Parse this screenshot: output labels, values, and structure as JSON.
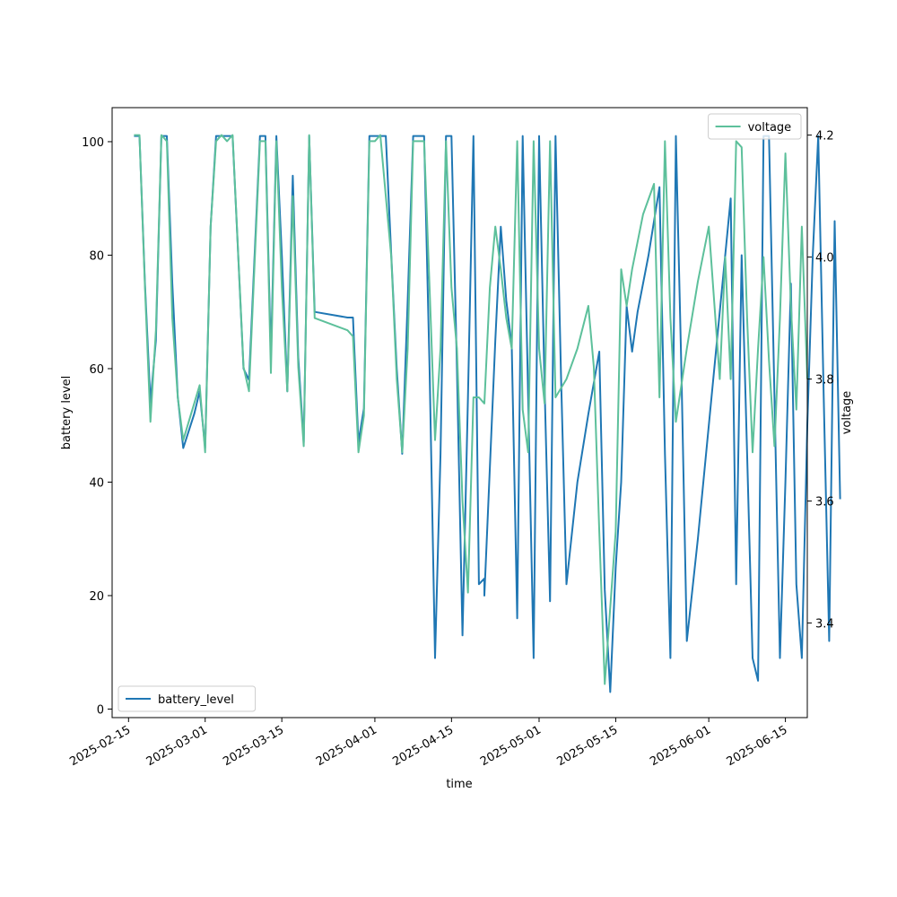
{
  "chart_data": {
    "type": "line",
    "xlabel": "time",
    "ylabel": "battery level",
    "y2label": "voltage",
    "xlim": [
      "2025-02-12",
      "2025-06-19"
    ],
    "ylim": [
      -1.5,
      106
    ],
    "y2lim": [
      3.245,
      4.245
    ],
    "x_ticks": [
      "2025-02-15",
      "2025-03-01",
      "2025-03-15",
      "2025-04-01",
      "2025-04-15",
      "2025-05-01",
      "2025-05-15",
      "2025-06-01",
      "2025-06-15"
    ],
    "y_ticks": [
      0,
      20,
      40,
      60,
      80,
      100
    ],
    "y2_ticks": [
      "3.4",
      "3.6",
      "3.8",
      "4.0",
      "4.2"
    ],
    "grid": false,
    "series": [
      {
        "name": "battery_level",
        "axis": "left",
        "color": "#1f77b4",
        "legend_position": "lower-left",
        "points": [
          [
            "2025-02-16",
            101
          ],
          [
            "2025-02-17",
            101
          ],
          [
            "2025-02-18",
            75
          ],
          [
            "2025-02-19",
            54
          ],
          [
            "2025-02-20",
            65
          ],
          [
            "2025-02-21",
            101
          ],
          [
            "2025-02-22",
            101
          ],
          [
            "2025-02-23",
            75
          ],
          [
            "2025-02-24",
            55
          ],
          [
            "2025-02-25",
            46
          ],
          [
            "2025-02-26",
            49
          ],
          [
            "2025-02-27",
            52
          ],
          [
            "2025-02-28",
            56
          ],
          [
            "2025-03-01",
            46
          ],
          [
            "2025-03-02",
            85
          ],
          [
            "2025-03-03",
            101
          ],
          [
            "2025-03-04",
            101
          ],
          [
            "2025-03-06",
            101
          ],
          [
            "2025-03-08",
            60
          ],
          [
            "2025-03-09",
            58
          ],
          [
            "2025-03-11",
            101
          ],
          [
            "2025-03-12",
            101
          ],
          [
            "2025-03-13",
            62
          ],
          [
            "2025-03-14",
            101
          ],
          [
            "2025-03-15",
            80
          ],
          [
            "2025-03-16",
            56
          ],
          [
            "2025-03-17",
            94
          ],
          [
            "2025-03-18",
            62
          ],
          [
            "2025-03-19",
            47
          ],
          [
            "2025-03-20",
            101
          ],
          [
            "2025-03-21",
            70
          ],
          [
            "2025-03-27",
            69
          ],
          [
            "2025-03-28",
            69
          ],
          [
            "2025-03-29",
            47
          ],
          [
            "2025-03-30",
            53
          ],
          [
            "2025-03-31",
            101
          ],
          [
            "2025-04-01",
            101
          ],
          [
            "2025-04-03",
            101
          ],
          [
            "2025-04-04",
            80
          ],
          [
            "2025-04-05",
            60
          ],
          [
            "2025-04-06",
            45
          ],
          [
            "2025-04-07",
            72
          ],
          [
            "2025-04-08",
            101
          ],
          [
            "2025-04-10",
            101
          ],
          [
            "2025-04-11",
            60
          ],
          [
            "2025-04-12",
            9
          ],
          [
            "2025-04-13",
            45
          ],
          [
            "2025-04-14",
            101
          ],
          [
            "2025-04-15",
            101
          ],
          [
            "2025-04-16",
            60
          ],
          [
            "2025-04-17",
            13
          ],
          [
            "2025-04-18",
            55
          ],
          [
            "2025-04-19",
            101
          ],
          [
            "2025-04-20",
            22
          ],
          [
            "2025-04-21",
            23
          ],
          [
            "2025-04-21",
            20
          ],
          [
            "2025-04-23",
            65
          ],
          [
            "2025-04-24",
            85
          ],
          [
            "2025-04-25",
            72
          ],
          [
            "2025-04-26",
            64
          ],
          [
            "2025-04-27",
            16
          ],
          [
            "2025-04-28",
            101
          ],
          [
            "2025-04-29",
            55
          ],
          [
            "2025-04-30",
            9
          ],
          [
            "2025-05-01",
            101
          ],
          [
            "2025-05-02",
            57
          ],
          [
            "2025-05-03",
            19
          ],
          [
            "2025-05-04",
            101
          ],
          [
            "2025-05-05",
            59
          ],
          [
            "2025-05-06",
            22
          ],
          [
            "2025-05-08",
            40
          ],
          [
            "2025-05-10",
            52
          ],
          [
            "2025-05-12",
            63
          ],
          [
            "2025-05-13",
            21
          ],
          [
            "2025-05-14",
            3
          ],
          [
            "2025-05-15",
            25
          ],
          [
            "2025-05-16",
            40
          ],
          [
            "2025-05-17",
            71
          ],
          [
            "2025-05-18",
            63
          ],
          [
            "2025-05-19",
            70
          ],
          [
            "2025-05-21",
            80
          ],
          [
            "2025-05-23",
            92
          ],
          [
            "2025-05-24",
            45
          ],
          [
            "2025-05-25",
            9
          ],
          [
            "2025-05-26",
            101
          ],
          [
            "2025-05-27",
            60
          ],
          [
            "2025-05-28",
            12
          ],
          [
            "2025-05-30",
            30
          ],
          [
            "2025-06-01",
            50
          ],
          [
            "2025-06-03",
            70
          ],
          [
            "2025-06-05",
            90
          ],
          [
            "2025-06-06",
            22
          ],
          [
            "2025-06-07",
            80
          ],
          [
            "2025-06-08",
            45
          ],
          [
            "2025-06-09",
            9
          ],
          [
            "2025-06-10",
            5
          ],
          [
            "2025-06-11",
            101
          ],
          [
            "2025-06-12",
            101
          ],
          [
            "2025-06-13",
            55
          ],
          [
            "2025-06-14",
            9
          ],
          [
            "2025-06-15",
            40
          ],
          [
            "2025-06-16",
            75
          ],
          [
            "2025-06-17",
            22
          ],
          [
            "2025-06-18",
            9
          ],
          [
            "2025-06-19",
            50
          ],
          [
            "2025-06-20",
            80
          ],
          [
            "2025-06-21",
            101
          ],
          [
            "2025-06-22",
            55
          ],
          [
            "2025-06-23",
            12
          ],
          [
            "2025-06-24",
            86
          ],
          [
            "2025-06-25",
            37
          ]
        ]
      },
      {
        "name": "voltage",
        "axis": "right",
        "color": "#5dc09b",
        "legend_position": "upper-right",
        "points": [
          [
            "2025-02-16",
            4.2
          ],
          [
            "2025-02-17",
            4.2
          ],
          [
            "2025-02-18",
            3.95
          ],
          [
            "2025-02-19",
            3.73
          ],
          [
            "2025-02-20",
            3.88
          ],
          [
            "2025-02-21",
            4.2
          ],
          [
            "2025-02-22",
            4.19
          ],
          [
            "2025-02-23",
            3.9
          ],
          [
            "2025-02-24",
            3.77
          ],
          [
            "2025-02-25",
            3.7
          ],
          [
            "2025-02-26",
            3.73
          ],
          [
            "2025-02-27",
            3.76
          ],
          [
            "2025-02-28",
            3.79
          ],
          [
            "2025-03-01",
            3.68
          ],
          [
            "2025-03-02",
            4.05
          ],
          [
            "2025-03-03",
            4.19
          ],
          [
            "2025-03-04",
            4.2
          ],
          [
            "2025-03-05",
            4.19
          ],
          [
            "2025-03-06",
            4.2
          ],
          [
            "2025-03-08",
            3.82
          ],
          [
            "2025-03-09",
            3.78
          ],
          [
            "2025-03-11",
            4.19
          ],
          [
            "2025-03-12",
            4.19
          ],
          [
            "2025-03-13",
            3.81
          ],
          [
            "2025-03-14",
            4.19
          ],
          [
            "2025-03-15",
            3.95
          ],
          [
            "2025-03-16",
            3.78
          ],
          [
            "2025-03-17",
            4.1
          ],
          [
            "2025-03-18",
            3.82
          ],
          [
            "2025-03-19",
            3.69
          ],
          [
            "2025-03-20",
            4.2
          ],
          [
            "2025-03-21",
            3.9
          ],
          [
            "2025-03-27",
            3.88
          ],
          [
            "2025-03-28",
            3.87
          ],
          [
            "2025-03-29",
            3.68
          ],
          [
            "2025-03-30",
            3.74
          ],
          [
            "2025-03-31",
            4.19
          ],
          [
            "2025-04-01",
            4.19
          ],
          [
            "2025-04-02",
            4.2
          ],
          [
            "2025-04-04",
            4.0
          ],
          [
            "2025-04-05",
            3.8
          ],
          [
            "2025-04-06",
            3.68
          ],
          [
            "2025-04-07",
            3.85
          ],
          [
            "2025-04-08",
            4.19
          ],
          [
            "2025-04-09",
            4.19
          ],
          [
            "2025-04-10",
            4.19
          ],
          [
            "2025-04-11",
            3.95
          ],
          [
            "2025-04-12",
            3.7
          ],
          [
            "2025-04-13",
            3.85
          ],
          [
            "2025-04-14",
            4.19
          ],
          [
            "2025-04-15",
            3.95
          ],
          [
            "2025-04-16",
            3.85
          ],
          [
            "2025-04-17",
            3.6
          ],
          [
            "2025-04-18",
            3.45
          ],
          [
            "2025-04-19",
            3.77
          ],
          [
            "2025-04-20",
            3.77
          ],
          [
            "2025-04-21",
            3.76
          ],
          [
            "2025-04-22",
            3.95
          ],
          [
            "2025-04-23",
            4.05
          ],
          [
            "2025-04-24",
            3.98
          ],
          [
            "2025-04-25",
            3.9
          ],
          [
            "2025-04-26",
            3.85
          ],
          [
            "2025-04-27",
            4.19
          ],
          [
            "2025-04-28",
            3.75
          ],
          [
            "2025-04-29",
            3.68
          ],
          [
            "2025-04-30",
            4.19
          ],
          [
            "2025-05-01",
            3.85
          ],
          [
            "2025-05-02",
            3.76
          ],
          [
            "2025-05-03",
            4.19
          ],
          [
            "2025-05-04",
            3.77
          ],
          [
            "2025-05-06",
            3.8
          ],
          [
            "2025-05-08",
            3.85
          ],
          [
            "2025-05-10",
            3.92
          ],
          [
            "2025-05-11",
            3.82
          ],
          [
            "2025-05-12",
            3.55
          ],
          [
            "2025-05-13",
            3.3
          ],
          [
            "2025-05-15",
            3.55
          ],
          [
            "2025-05-16",
            3.98
          ],
          [
            "2025-05-17",
            3.92
          ],
          [
            "2025-05-18",
            3.98
          ],
          [
            "2025-05-20",
            4.07
          ],
          [
            "2025-05-22",
            4.12
          ],
          [
            "2025-05-23",
            3.77
          ],
          [
            "2025-05-24",
            4.19
          ],
          [
            "2025-05-25",
            3.9
          ],
          [
            "2025-05-26",
            3.73
          ],
          [
            "2025-05-28",
            3.85
          ],
          [
            "2025-05-30",
            3.96
          ],
          [
            "2025-06-01",
            4.05
          ],
          [
            "2025-06-03",
            3.8
          ],
          [
            "2025-06-04",
            4.0
          ],
          [
            "2025-06-05",
            3.8
          ],
          [
            "2025-06-06",
            4.19
          ],
          [
            "2025-06-07",
            4.18
          ],
          [
            "2025-06-08",
            3.9
          ],
          [
            "2025-06-09",
            3.68
          ],
          [
            "2025-06-10",
            3.85
          ],
          [
            "2025-06-11",
            4.0
          ],
          [
            "2025-06-12",
            3.83
          ],
          [
            "2025-06-13",
            3.69
          ],
          [
            "2025-06-14",
            3.9
          ],
          [
            "2025-06-15",
            4.17
          ],
          [
            "2025-06-16",
            3.92
          ],
          [
            "2025-06-17",
            3.75
          ],
          [
            "2025-06-18",
            4.05
          ],
          [
            "2025-06-19",
            3.8
          ]
        ]
      }
    ]
  }
}
